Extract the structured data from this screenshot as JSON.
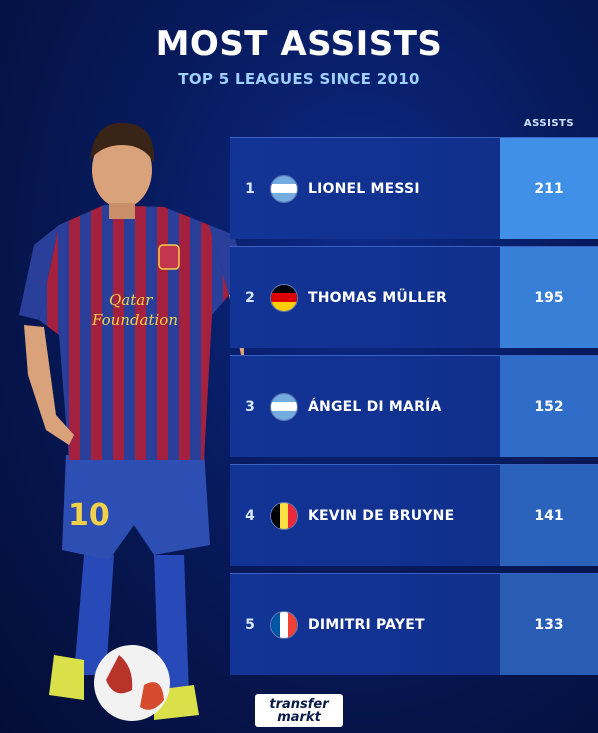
{
  "header": {
    "title": "MOST ASSISTS",
    "subtitle": "TOP 5 LEAGUES SINCE 2010",
    "column_label": "ASSISTS"
  },
  "rows": [
    {
      "rank": "1",
      "name": "LIONEL MESSI",
      "assists": "211",
      "flag": "argentina-flag-icon",
      "value_color": "#3f90e6"
    },
    {
      "rank": "2",
      "name": "THOMAS MÜLLER",
      "assists": "195",
      "flag": "germany-flag-icon",
      "value_color": "#387fd8"
    },
    {
      "rank": "3",
      "name": "ÁNGEL DI MARÍA",
      "assists": "152",
      "flag": "argentina-flag-icon",
      "value_color": "#2f6dc8"
    },
    {
      "rank": "4",
      "name": "KEVIN DE BRUYNE",
      "assists": "141",
      "flag": "belgium-flag-icon",
      "value_color": "#2b62bb"
    },
    {
      "rank": "5",
      "name": "DIMITRI PAYET",
      "assists": "133",
      "flag": "france-flag-icon",
      "value_color": "#295cb3"
    }
  ],
  "branding": {
    "logo_line1": "transfer",
    "logo_line2": "markt"
  },
  "colors": {
    "background": "#071a5c",
    "row": "#123496",
    "subtitle": "#9fd0ff"
  }
}
